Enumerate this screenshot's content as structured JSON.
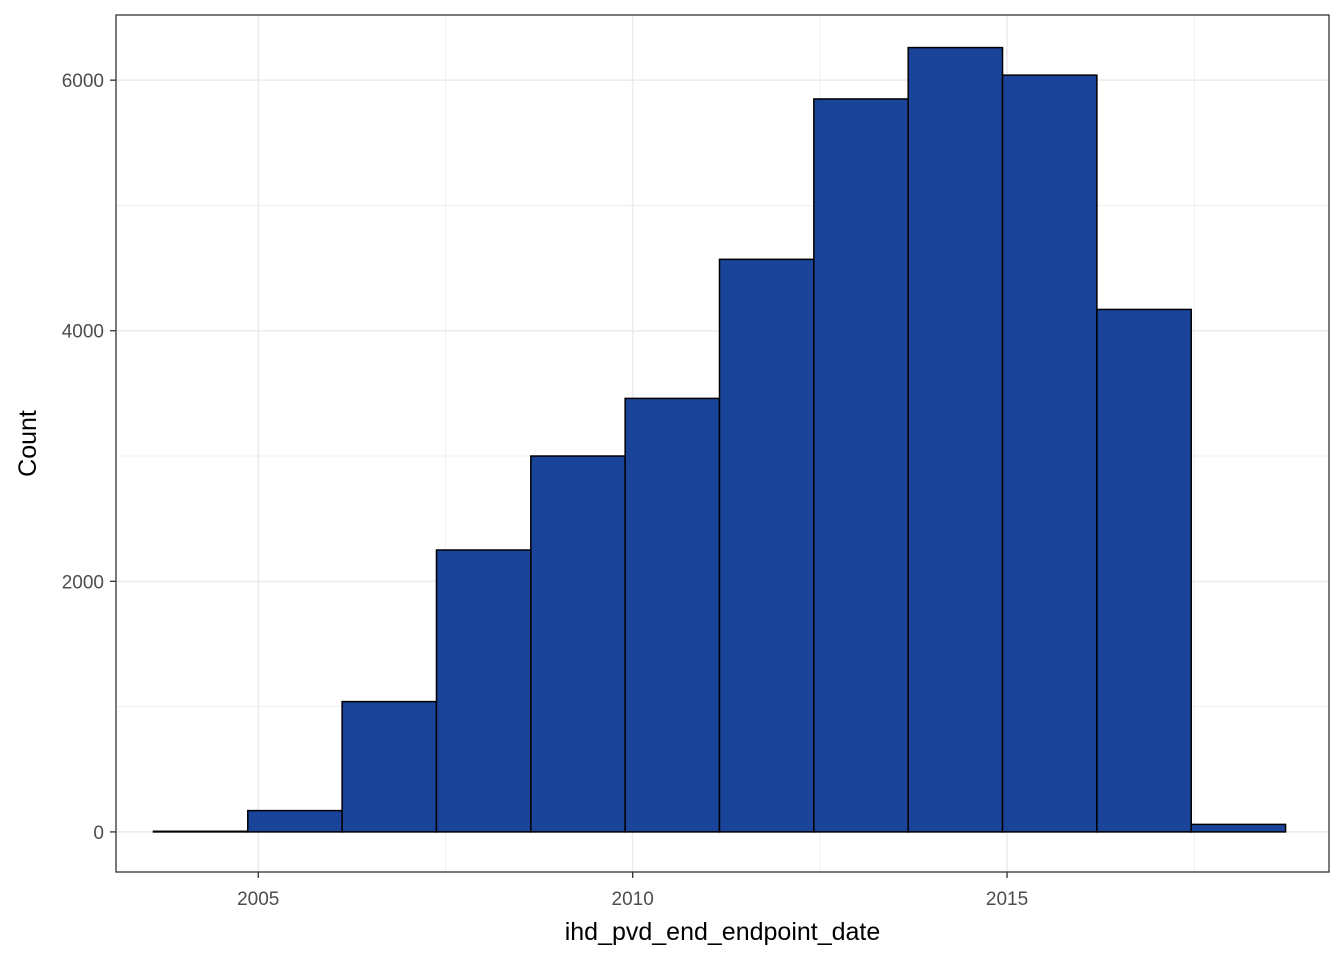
{
  "chart_data": {
    "type": "bar",
    "subtype": "histogram",
    "xlabel": "ihd_pvd_end_endpoint_date",
    "ylabel": "Count",
    "xlim": [
      2003.1,
      2019.3
    ],
    "ylim": [
      -320,
      6520
    ],
    "x_ticks": [
      2005,
      2010,
      2015
    ],
    "x_minor_ticks": [
      2007.5,
      2012.5,
      2017.5
    ],
    "y_ticks": [
      0,
      2000,
      4000,
      6000
    ],
    "y_minor_ticks": [
      1000,
      3000,
      5000
    ],
    "grid": true,
    "bin_edges": [
      2003.6,
      2004.86,
      2006.12,
      2007.38,
      2008.64,
      2009.9,
      2011.16,
      2012.42,
      2013.68,
      2014.94,
      2016.2,
      2017.46,
      2018.72
    ],
    "counts": [
      5,
      170,
      1040,
      2250,
      3000,
      3460,
      4570,
      5850,
      6260,
      6040,
      4170,
      60
    ],
    "bar_fill": "#1a4499",
    "bar_stroke": "#000000",
    "grid_color": "#ebebeb",
    "panel_border": "#333333",
    "background": "#ffffff"
  }
}
